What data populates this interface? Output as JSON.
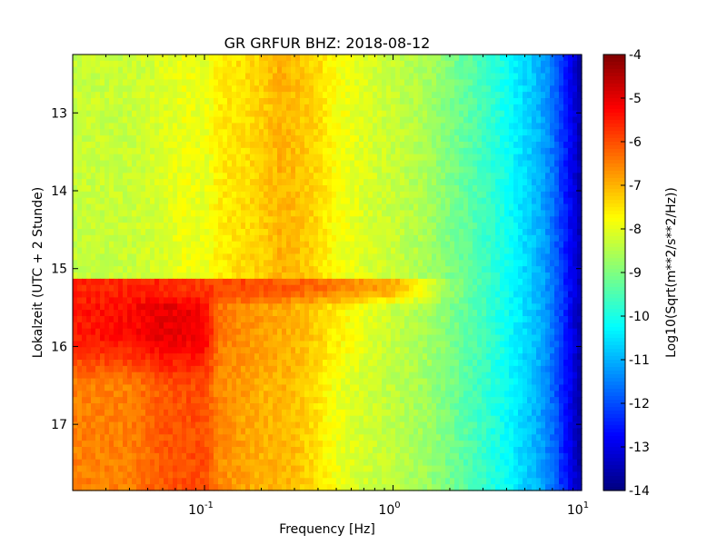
{
  "chart_data": {
    "type": "heatmap",
    "title": "GR GRFUR BHZ: 2018-08-12",
    "xlabel": "Frequency [Hz]",
    "ylabel": "Lokalzeit (UTC + 2 Stunde)",
    "x_scale": "log",
    "xlim": [
      0.02,
      10
    ],
    "xticks": [
      {
        "value": 0.1,
        "base": "10",
        "exp": "-1"
      },
      {
        "value": 1,
        "base": "10",
        "exp": "0"
      },
      {
        "value": 10,
        "base": "10",
        "exp": "1"
      }
    ],
    "ylim": [
      12.25,
      17.85
    ],
    "y_inverted": true,
    "yticks": [
      "13",
      "14",
      "15",
      "16",
      "17"
    ],
    "colorbar": {
      "label": "Log10(Sqrt(m**2/s**2/Hz))",
      "colormap": "jet",
      "range": [
        -14,
        -4
      ],
      "ticks": [
        "-4",
        "-5",
        "-6",
        "-7",
        "-8",
        "-9",
        "-10",
        "-11",
        "-12",
        "-13",
        "-14"
      ]
    },
    "profiles": {
      "frequencies": [
        0.02,
        0.04,
        0.06,
        0.08,
        0.1,
        0.12,
        0.2,
        0.25,
        0.3,
        0.4,
        0.5,
        0.7,
        1,
        1.5,
        2,
        3,
        4,
        5,
        6,
        7,
        8,
        9,
        10
      ],
      "before_event_12_25_to_15_15": [
        -8.3,
        -8.3,
        -8.1,
        -7.9,
        -8.0,
        -7.6,
        -7.3,
        -7.0,
        -7.1,
        -7.4,
        -7.8,
        -8.1,
        -8.3,
        -8.6,
        -9.0,
        -9.6,
        -10.1,
        -10.6,
        -11.0,
        -11.6,
        -12.3,
        -13.0,
        -13.6
      ],
      "event_onset_15_2": [
        -5.6,
        -5.6,
        -5.6,
        -5.7,
        -5.8,
        -5.9,
        -6.0,
        -6.1,
        -6.2,
        -6.3,
        -6.5,
        -6.7,
        -6.9,
        -8.0,
        -8.8,
        -9.6,
        -10.1,
        -10.6,
        -11.0,
        -11.6,
        -12.3,
        -13.0,
        -13.6
      ],
      "event_peak_15_6": [
        -5.5,
        -5.3,
        -5.0,
        -5.1,
        -5.2,
        -6.4,
        -6.8,
        -6.9,
        -7.0,
        -7.3,
        -7.6,
        -8.0,
        -8.3,
        -8.6,
        -9.0,
        -9.6,
        -10.1,
        -10.6,
        -11.0,
        -11.6,
        -12.3,
        -13.0,
        -13.6
      ],
      "after_event_16_5_to_17_85": [
        -6.5,
        -6.5,
        -6.1,
        -6.0,
        -6.0,
        -6.6,
        -7.0,
        -7.0,
        -7.1,
        -7.5,
        -7.9,
        -8.2,
        -8.4,
        -8.7,
        -9.1,
        -9.7,
        -10.2,
        -10.7,
        -11.1,
        -11.7,
        -12.4,
        -13.1,
        -13.7
      ]
    }
  }
}
